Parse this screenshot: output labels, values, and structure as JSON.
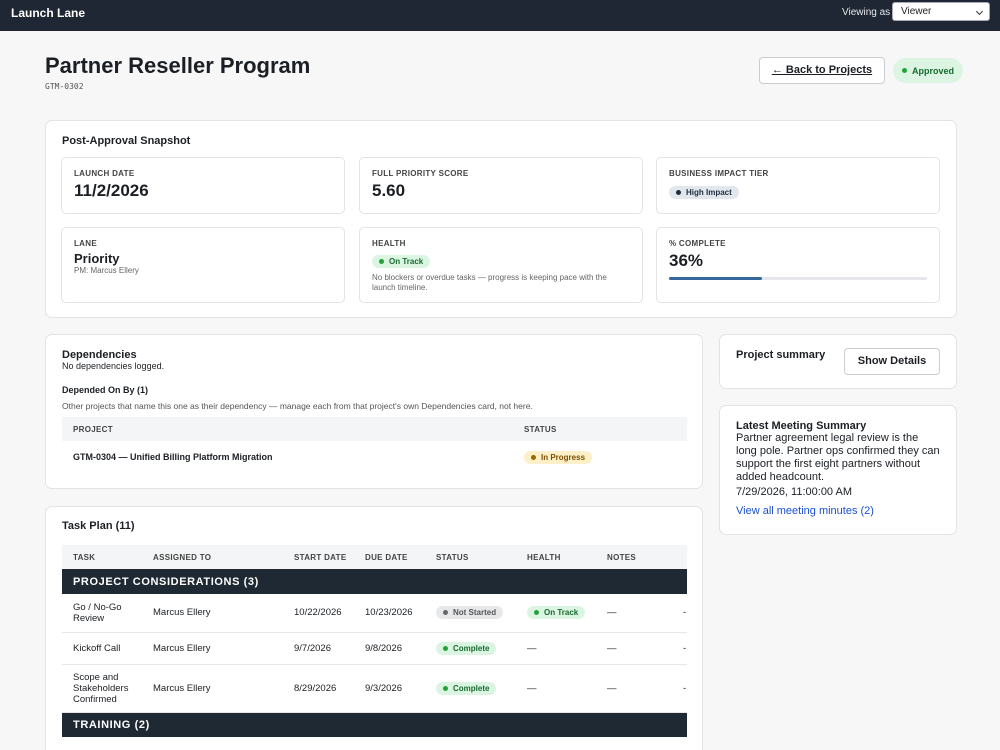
{
  "app": {
    "name": "Launch Lane",
    "viewing_as_label": "Viewing as",
    "viewing_as": "Viewer"
  },
  "header": {
    "title": "Partner Reseller Program",
    "code": "GTM-0302",
    "back_button": "← Back to Projects",
    "status": {
      "text": "Approved",
      "tone": "green"
    }
  },
  "snapshot": {
    "title": "Post-Approval Snapshot",
    "launch_date": {
      "label": "LAUNCH DATE",
      "value": "11/2/2026"
    },
    "priority_score": {
      "label": "FULL PRIORITY SCORE",
      "value": "5.60"
    },
    "impact_tier": {
      "label": "BUSINESS IMPACT TIER",
      "badge": {
        "text": "High Impact",
        "tone": "slate"
      }
    },
    "lane": {
      "label": "LANE",
      "value": "Priority",
      "pm": "PM: Marcus Ellery"
    },
    "health": {
      "label": "HEALTH",
      "badge": {
        "text": "On Track",
        "tone": "green"
      },
      "note": "No blockers or overdue tasks — progress is keeping pace with the launch timeline."
    },
    "complete": {
      "label": "% COMPLETE",
      "value": "36%",
      "progress": 36
    }
  },
  "dependencies": {
    "title": "Dependencies",
    "empty_note": "No dependencies logged.",
    "depended_on_by": {
      "title": "Depended On By (1)",
      "note": "Other projects that name this one as their dependency — manage each from that project's own Dependencies card, not here.",
      "columns": [
        "PROJECT",
        "STATUS"
      ],
      "rows": [
        [
          "GTM-0304 — Unified Billing Platform Migration",
          {
            "text": "In Progress",
            "tone": "yellow"
          }
        ]
      ]
    }
  },
  "summary": {
    "title": "Project summary",
    "button": "Show Details"
  },
  "meeting": {
    "title": "Latest Meeting Summary",
    "body": "Partner agreement legal review is the long pole. Partner ops confirmed they can support the first eight partners without added headcount.",
    "timestamp": "7/29/2026, 11:00:00 AM",
    "link": "View all meeting minutes (2)"
  },
  "tasks": {
    "title": "Task Plan (11)",
    "columns": [
      "TASK",
      "ASSIGNED TO",
      "START DATE",
      "DUE DATE",
      "STATUS",
      "HEALTH",
      "NOTES"
    ],
    "groups": [
      {
        "name": "PROJECT CONSIDERATIONS (3)",
        "rows": [
          [
            "Go / No-Go Review",
            "Marcus Ellery",
            "10/22/2026",
            "10/23/2026",
            {
              "text": "Not Started",
              "tone": "gray"
            },
            {
              "text": "On Track",
              "tone": "green"
            },
            "—",
            "-"
          ],
          [
            "Kickoff Call",
            "Marcus Ellery",
            "9/7/2026",
            "9/8/2026",
            {
              "text": "Complete",
              "tone": "green"
            },
            "—",
            "—",
            "-"
          ],
          [
            "Scope and Stakeholders Confirmed",
            "Marcus Ellery",
            "8/29/2026",
            "9/3/2026",
            {
              "text": "Complete",
              "tone": "green"
            },
            "—",
            "—",
            "-"
          ]
        ]
      },
      {
        "name": "TRAINING (2)",
        "rows": []
      }
    ]
  }
}
